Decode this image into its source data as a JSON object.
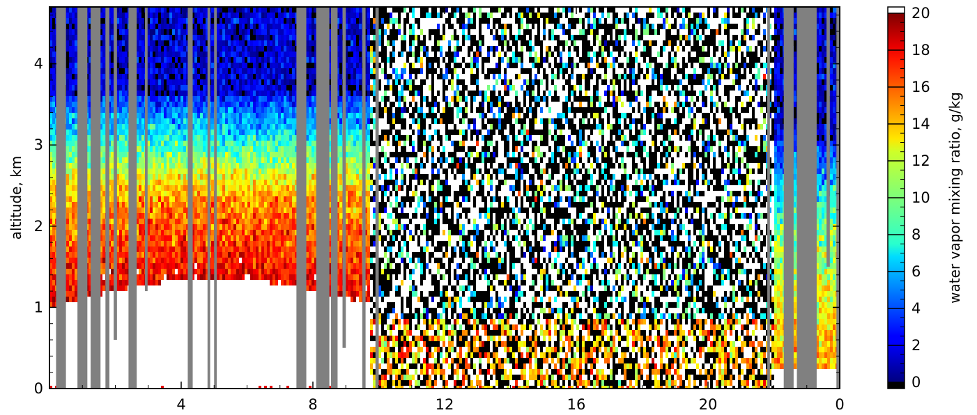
{
  "chart_data": {
    "type": "heatmap",
    "title": "",
    "xlabel": "",
    "ylabel": "altitude, km",
    "x_ticks": [
      "4",
      "8",
      "12",
      "16",
      "20",
      "0"
    ],
    "y_ticks": [
      "0",
      "1",
      "2",
      "3",
      "4"
    ],
    "ylim": [
      0,
      4.7
    ],
    "x_range_hours": [
      0,
      24
    ],
    "colorbar": {
      "label": "water vapor mixing ratio, g/kg",
      "range": [
        0,
        20
      ],
      "ticks": [
        "0",
        "2",
        "4",
        "6",
        "8",
        "10",
        "12",
        "14",
        "16",
        "18",
        "20"
      ],
      "colormap": "jet",
      "over_color": "#ffffff",
      "under_color": "#000000"
    },
    "missing_data_color": "#808080",
    "grid": false,
    "regions": [
      {
        "x_range": [
          0,
          9.7
        ],
        "content": "moist layer 12-20 g/kg between about 1 and 3 km, dry 0-2 g/kg above 3.5 km, no data near surface"
      },
      {
        "x_range": [
          9.7,
          22.0
        ],
        "content": "noisy daytime retrievals; 8-20 g/kg below about 0.8 km"
      },
      {
        "x_range": [
          22.0,
          24.0
        ],
        "content": "moist 10-20 g/kg below about 2 km, dry aloft"
      }
    ]
  }
}
